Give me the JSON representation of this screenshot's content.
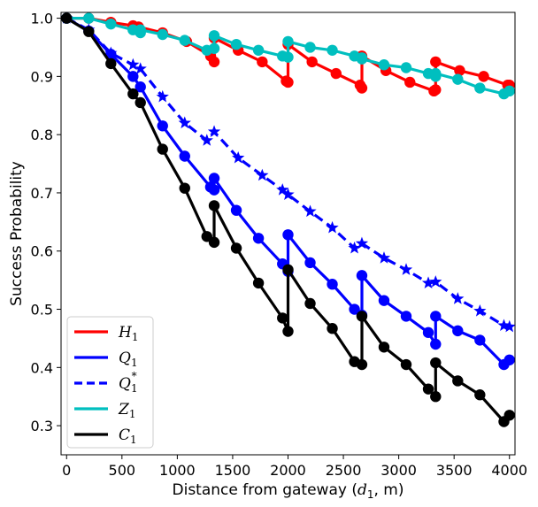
{
  "chart_data": {
    "type": "line",
    "xlabel": "Distance from gateway (",
    "xlabel_var": "d",
    "xlabel_sub": "1",
    "xlabel_tail": ", m)",
    "ylabel": "Success Probability",
    "xlim": [
      -50,
      4050
    ],
    "ylim": [
      0.25,
      1.01
    ],
    "xticks": [
      0,
      500,
      1000,
      1500,
      2000,
      2500,
      3000,
      3500,
      4000
    ],
    "yticks": [
      0.3,
      0.4,
      0.5,
      0.6,
      0.7,
      0.8,
      0.9,
      1.0
    ],
    "grid": false,
    "legend_position": "bottom-left",
    "series": [
      {
        "name": "H",
        "sub": "1",
        "sup": "",
        "color": "#ff0000",
        "dashed": false,
        "marker": "circle",
        "segments": [
          [
            [
              0,
              1.0
            ],
            [
              200,
              1.0
            ],
            [
              400,
              0.993
            ],
            [
              600,
              0.987
            ],
            [
              650,
              0.985
            ],
            [
              867,
              0.975
            ],
            [
              1084,
              0.96
            ],
            [
              1301,
              0.935
            ],
            [
              1333,
              0.925
            ]
          ],
          [
            [
              1333,
              0.966
            ],
            [
              1550,
              0.945
            ],
            [
              1767,
              0.925
            ],
            [
              1984,
              0.892
            ],
            [
              2000,
              0.89
            ]
          ],
          [
            [
              2000,
              0.955
            ],
            [
              2217,
              0.925
            ],
            [
              2434,
              0.905
            ],
            [
              2651,
              0.885
            ],
            [
              2667,
              0.88
            ]
          ],
          [
            [
              2667,
              0.935
            ],
            [
              2884,
              0.91
            ],
            [
              3101,
              0.89
            ],
            [
              3318,
              0.875
            ],
            [
              3333,
              0.877
            ]
          ],
          [
            [
              3333,
              0.925
            ],
            [
              3550,
              0.91
            ],
            [
              3767,
              0.9
            ],
            [
              3984,
              0.885
            ],
            [
              4000,
              0.885
            ]
          ]
        ]
      },
      {
        "name": "Q",
        "sub": "1",
        "sup": "",
        "color": "#0000ff",
        "dashed": false,
        "marker": "circle",
        "segments": [
          [
            [
              0,
              1.0
            ],
            [
              200,
              0.978
            ],
            [
              400,
              0.938
            ],
            [
              600,
              0.9
            ],
            [
              667,
              0.882
            ],
            [
              867,
              0.815
            ],
            [
              1067,
              0.763
            ],
            [
              1300,
              0.71
            ],
            [
              1333,
              0.705
            ]
          ],
          [
            [
              1333,
              0.725
            ],
            [
              1533,
              0.67
            ],
            [
              1733,
              0.622
            ],
            [
              1950,
              0.578
            ],
            [
              2000,
              0.565
            ]
          ],
          [
            [
              2000,
              0.628
            ],
            [
              2200,
              0.58
            ],
            [
              2400,
              0.543
            ],
            [
              2600,
              0.5
            ],
            [
              2667,
              0.49
            ]
          ],
          [
            [
              2667,
              0.558
            ],
            [
              2867,
              0.515
            ],
            [
              3067,
              0.488
            ],
            [
              3267,
              0.46
            ],
            [
              3333,
              0.44
            ]
          ],
          [
            [
              3333,
              0.488
            ],
            [
              3533,
              0.463
            ],
            [
              3733,
              0.447
            ],
            [
              3950,
              0.405
            ],
            [
              4000,
              0.413
            ]
          ]
        ]
      },
      {
        "name": "Q",
        "sub": "1",
        "sup": "*",
        "color": "#0000ff",
        "dashed": true,
        "marker": "star",
        "segments": [
          [
            [
              0,
              1.0
            ],
            [
              200,
              0.98
            ],
            [
              400,
              0.94
            ],
            [
              600,
              0.92
            ],
            [
              667,
              0.913
            ],
            [
              867,
              0.865
            ],
            [
              1067,
              0.82
            ],
            [
              1267,
              0.79
            ],
            [
              1333,
              0.805
            ],
            [
              1550,
              0.76
            ],
            [
              1767,
              0.73
            ],
            [
              1950,
              0.705
            ],
            [
              2000,
              0.697
            ],
            [
              2200,
              0.668
            ],
            [
              2400,
              0.64
            ],
            [
              2600,
              0.605
            ],
            [
              2667,
              0.613
            ],
            [
              2867,
              0.588
            ],
            [
              3067,
              0.568
            ],
            [
              3267,
              0.545
            ],
            [
              3333,
              0.547
            ],
            [
              3533,
              0.518
            ],
            [
              3733,
              0.497
            ],
            [
              3950,
              0.472
            ],
            [
              4000,
              0.47
            ]
          ]
        ]
      },
      {
        "name": "Z",
        "sub": "1",
        "sup": "",
        "color": "#00bfbf",
        "dashed": false,
        "marker": "circle",
        "segments": [
          [
            [
              0,
              1.0
            ],
            [
              200,
              1.0
            ],
            [
              400,
              0.99
            ],
            [
              600,
              0.98
            ],
            [
              667,
              0.975
            ]
          ],
          [
            [
              667,
              0.98
            ],
            [
              867,
              0.972
            ],
            [
              1067,
              0.962
            ],
            [
              1267,
              0.945
            ],
            [
              1333,
              0.948
            ]
          ],
          [
            [
              1333,
              0.97
            ],
            [
              1533,
              0.955
            ],
            [
              1733,
              0.945
            ],
            [
              1950,
              0.935
            ],
            [
              2000,
              0.933
            ]
          ],
          [
            [
              2000,
              0.96
            ],
            [
              2200,
              0.95
            ],
            [
              2400,
              0.945
            ],
            [
              2600,
              0.935
            ],
            [
              2667,
              0.932
            ]
          ],
          [
            [
              2667,
              0.93
            ],
            [
              2867,
              0.92
            ],
            [
              3067,
              0.915
            ],
            [
              3267,
              0.905
            ],
            [
              3333,
              0.9
            ]
          ],
          [
            [
              3333,
              0.905
            ],
            [
              3533,
              0.895
            ],
            [
              3733,
              0.88
            ],
            [
              3950,
              0.87
            ],
            [
              4000,
              0.875
            ]
          ]
        ]
      },
      {
        "name": "C",
        "sub": "1",
        "sup": "",
        "color": "#000000",
        "dashed": false,
        "marker": "circle",
        "segments": [
          [
            [
              0,
              1.0
            ],
            [
              200,
              0.977
            ],
            [
              400,
              0.922
            ],
            [
              600,
              0.87
            ],
            [
              667,
              0.855
            ],
            [
              867,
              0.775
            ],
            [
              1067,
              0.708
            ],
            [
              1267,
              0.625
            ],
            [
              1333,
              0.615
            ]
          ],
          [
            [
              1333,
              0.678
            ],
            [
              1533,
              0.605
            ],
            [
              1733,
              0.545
            ],
            [
              1950,
              0.485
            ],
            [
              2000,
              0.462
            ]
          ],
          [
            [
              2000,
              0.568
            ],
            [
              2200,
              0.51
            ],
            [
              2400,
              0.467
            ],
            [
              2600,
              0.41
            ],
            [
              2667,
              0.405
            ]
          ],
          [
            [
              2667,
              0.488
            ],
            [
              2867,
              0.435
            ],
            [
              3067,
              0.405
            ],
            [
              3267,
              0.363
            ],
            [
              3333,
              0.35
            ]
          ],
          [
            [
              3333,
              0.408
            ],
            [
              3533,
              0.377
            ],
            [
              3733,
              0.353
            ],
            [
              3950,
              0.307
            ],
            [
              4000,
              0.318
            ]
          ]
        ]
      }
    ]
  }
}
